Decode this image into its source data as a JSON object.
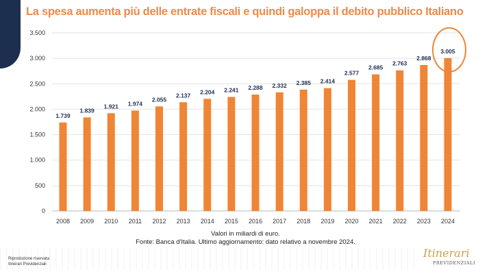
{
  "title": "La spesa aumenta più delle entrate fiscali e quindi galoppa il debito pubblico Italiano",
  "notes": {
    "line1": "Valori in miliardi di euro.",
    "line2": "Fonte: Banca d'Italia. Ultimo aggiornamento: dato relativo a novembre 2024."
  },
  "footer": {
    "repro_line1": "Riproduzione riservata",
    "repro_line2": "Itinerari Previdenziali",
    "logo_script": "Itinerari",
    "logo_caps": "PREVIDENZIALI"
  },
  "colors": {
    "bar": "#ef8535",
    "title": "#ee8a4a",
    "highlight": "#ef8535",
    "label": "#1d2f4f"
  },
  "chart_data": {
    "type": "bar",
    "categories": [
      "2008",
      "2009",
      "2010",
      "2011",
      "2012",
      "2013",
      "2014",
      "2015",
      "2016",
      "2017",
      "2018",
      "2019",
      "2020",
      "2021",
      "2022",
      "2023",
      "2024"
    ],
    "values": [
      1739,
      1839,
      1921,
      1974,
      2055,
      2137,
      2204,
      2241,
      2288,
      2332,
      2385,
      2414,
      2577,
      2685,
      2763,
      2868,
      3005
    ],
    "data_labels": [
      "1.739",
      "1.839",
      "1.921",
      "1.974",
      "2.055",
      "2.137",
      "2.204",
      "2.241",
      "2.288",
      "2.332",
      "2.385",
      "2.414",
      "2.577",
      "2.685",
      "2.763",
      "2.868",
      "3.005"
    ],
    "yticks": [
      0,
      500,
      1000,
      1500,
      2000,
      2500,
      3000,
      3500
    ],
    "ytick_labels": [
      "0",
      "500",
      "1.000",
      "1.500",
      "2.000",
      "2.500",
      "3.000",
      "3.500"
    ],
    "ylim": [
      0,
      3500
    ],
    "grid": true,
    "legend": "none",
    "highlighted_category": "2024"
  }
}
